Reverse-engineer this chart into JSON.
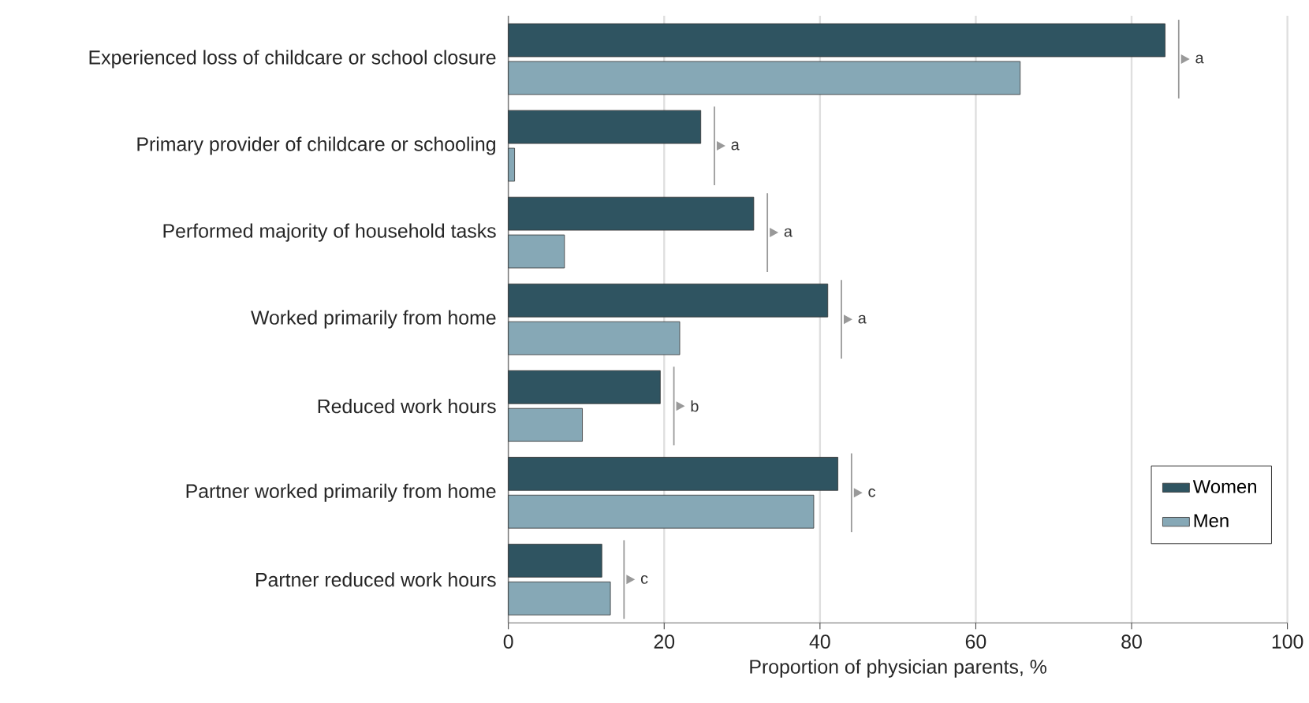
{
  "chart_data": {
    "type": "bar",
    "orientation": "horizontal",
    "xlabel": "Proportion of physician parents, %",
    "categories": [
      "Experienced loss of childcare or school closure",
      "Primary provider of childcare or schooling",
      "Performed majority of household tasks",
      "Worked primarily from home",
      "Reduced work hours",
      "Partner worked primarily from home",
      "Partner reduced work hours"
    ],
    "series": [
      {
        "name": "Women",
        "color": "#2f5461",
        "values": [
          84.3,
          24.7,
          31.5,
          41.0,
          19.5,
          42.3,
          12.0
        ]
      },
      {
        "name": "Men",
        "color": "#86a8b6",
        "values": [
          65.7,
          0.8,
          7.2,
          22.0,
          9.5,
          39.2,
          13.1
        ]
      }
    ],
    "xlim": [
      0,
      100
    ],
    "xticks": [
      0,
      20,
      40,
      60,
      80,
      100
    ],
    "grid": "x",
    "legend": "bottom right",
    "annotations": [
      "a",
      "a",
      "a",
      "a",
      "b",
      "c",
      "c"
    ]
  }
}
